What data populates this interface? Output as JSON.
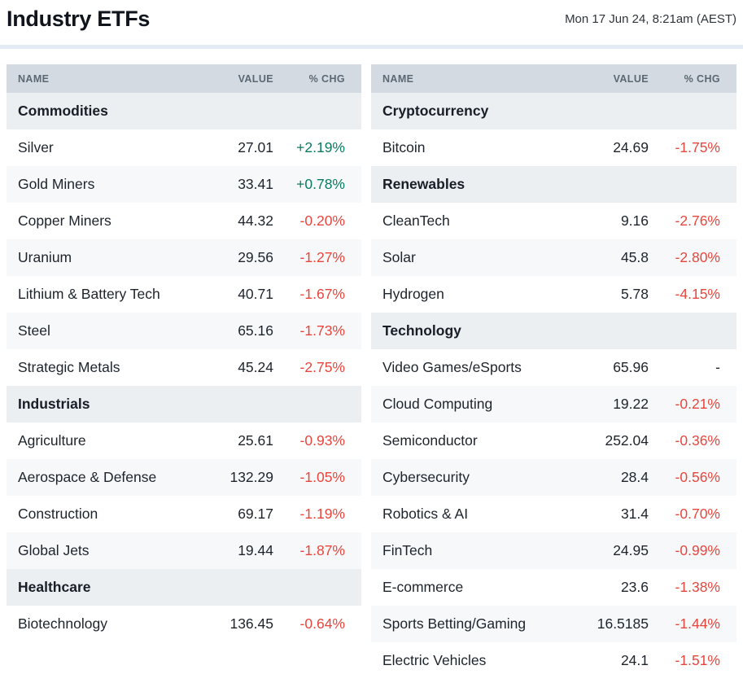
{
  "header": {
    "title": "Industry ETFs",
    "timestamp": "Mon 17 Jun 24, 8:21am (AEST)"
  },
  "columns": {
    "name": "NAME",
    "value": "VALUE",
    "chg": "% CHG"
  },
  "colors": {
    "positive": "#0b7b63",
    "negative": "#e8463d",
    "header_bg": "#d3dae1",
    "header_text": "#5a6874",
    "section_bg": "#eceff2",
    "row_alt_bg": "#f7f8fa",
    "divider": "#e3ecf4",
    "text": "#1d242c"
  },
  "tables": [
    {
      "side": "left",
      "sections": [
        {
          "title": "Commodities",
          "rows": [
            {
              "name": "Silver",
              "value": "27.01",
              "chg": "+2.19%",
              "dir": "up"
            },
            {
              "name": "Gold Miners",
              "value": "33.41",
              "chg": "+0.78%",
              "dir": "up"
            },
            {
              "name": "Copper Miners",
              "value": "44.32",
              "chg": "-0.20%",
              "dir": "down"
            },
            {
              "name": "Uranium",
              "value": "29.56",
              "chg": "-1.27%",
              "dir": "down"
            },
            {
              "name": "Lithium & Battery Tech",
              "value": "40.71",
              "chg": "-1.67%",
              "dir": "down"
            },
            {
              "name": "Steel",
              "value": "65.16",
              "chg": "-1.73%",
              "dir": "down"
            },
            {
              "name": "Strategic Metals",
              "value": "45.24",
              "chg": "-2.75%",
              "dir": "down"
            }
          ]
        },
        {
          "title": "Industrials",
          "rows": [
            {
              "name": "Agriculture",
              "value": "25.61",
              "chg": "-0.93%",
              "dir": "down"
            },
            {
              "name": "Aerospace & Defense",
              "value": "132.29",
              "chg": "-1.05%",
              "dir": "down"
            },
            {
              "name": "Construction",
              "value": "69.17",
              "chg": "-1.19%",
              "dir": "down"
            },
            {
              "name": "Global Jets",
              "value": "19.44",
              "chg": "-1.87%",
              "dir": "down"
            }
          ]
        },
        {
          "title": "Healthcare",
          "rows": [
            {
              "name": "Biotechnology",
              "value": "136.45",
              "chg": "-0.64%",
              "dir": "down"
            }
          ]
        }
      ]
    },
    {
      "side": "right",
      "sections": [
        {
          "title": "Cryptocurrency",
          "rows": [
            {
              "name": "Bitcoin",
              "value": "24.69",
              "chg": "-1.75%",
              "dir": "down"
            }
          ]
        },
        {
          "title": "Renewables",
          "rows": [
            {
              "name": "CleanTech",
              "value": "9.16",
              "chg": "-2.76%",
              "dir": "down"
            },
            {
              "name": "Solar",
              "value": "45.8",
              "chg": "-2.80%",
              "dir": "down"
            },
            {
              "name": "Hydrogen",
              "value": "5.78",
              "chg": "-4.15%",
              "dir": "down"
            }
          ]
        },
        {
          "title": "Technology",
          "rows": [
            {
              "name": "Video Games/eSports",
              "value": "65.96",
              "chg": "-",
              "dir": "flat"
            },
            {
              "name": "Cloud Computing",
              "value": "19.22",
              "chg": "-0.21%",
              "dir": "down"
            },
            {
              "name": "Semiconductor",
              "value": "252.04",
              "chg": "-0.36%",
              "dir": "down"
            },
            {
              "name": "Cybersecurity",
              "value": "28.4",
              "chg": "-0.56%",
              "dir": "down"
            },
            {
              "name": "Robotics & AI",
              "value": "31.4",
              "chg": "-0.70%",
              "dir": "down"
            },
            {
              "name": "FinTech",
              "value": "24.95",
              "chg": "-0.99%",
              "dir": "down"
            },
            {
              "name": "E-commerce",
              "value": "23.6",
              "chg": "-1.38%",
              "dir": "down"
            },
            {
              "name": "Sports Betting/Gaming",
              "value": "16.5185",
              "chg": "-1.44%",
              "dir": "down"
            },
            {
              "name": "Electric Vehicles",
              "value": "24.1",
              "chg": "-1.51%",
              "dir": "down"
            }
          ]
        }
      ]
    }
  ]
}
